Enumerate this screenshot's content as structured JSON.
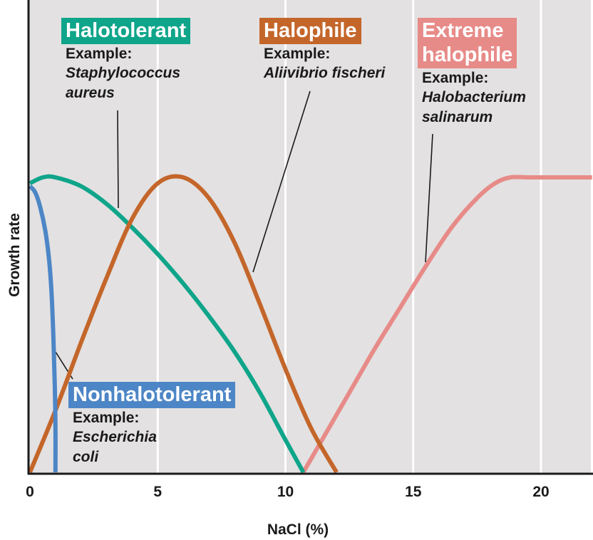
{
  "chart_data": {
    "type": "line",
    "title": "",
    "xlabel": "NaCl (%)",
    "ylabel": "Growth rate",
    "xlim": [
      0,
      22
    ],
    "ylim": [
      0,
      1
    ],
    "xticks": [
      0,
      5,
      10,
      15,
      20
    ],
    "xtick_labels": [
      "0",
      "5",
      "10",
      "15",
      "20"
    ],
    "grid": "vertical",
    "colors": {
      "background": "#e3e1e2",
      "gridline": "#ffffff",
      "axis": "#1a1a1a"
    },
    "series": [
      {
        "name": "Nonhalotolerant",
        "color": "#4d86c6",
        "x": [
          0,
          0.2,
          0.4,
          0.6,
          0.75,
          0.85,
          0.92,
          0.97,
          1.0,
          1.0
        ],
        "y": [
          0.97,
          0.95,
          0.9,
          0.82,
          0.72,
          0.6,
          0.45,
          0.3,
          0.15,
          0
        ]
      },
      {
        "name": "Halotolerant",
        "color": "#0fa58a",
        "x": [
          0,
          0.5,
          1,
          2,
          3,
          4,
          5,
          6,
          7,
          8,
          9,
          10,
          10.7
        ],
        "y": [
          0.98,
          1.0,
          1.0,
          0.97,
          0.91,
          0.83,
          0.74,
          0.64,
          0.53,
          0.41,
          0.27,
          0.11,
          0
        ]
      },
      {
        "name": "Halophile",
        "color": "#c4662a",
        "x": [
          0,
          1,
          2,
          3,
          4,
          5,
          6,
          7,
          8,
          9,
          10,
          11,
          12
        ],
        "y": [
          0,
          0.21,
          0.44,
          0.66,
          0.86,
          0.98,
          1.0,
          0.93,
          0.78,
          0.57,
          0.35,
          0.15,
          0
        ]
      },
      {
        "name": "Extreme halophile",
        "color": "#e78b88",
        "x": [
          10.7,
          11.5,
          12.5,
          13.5,
          14.5,
          15.5,
          16.5,
          17.5,
          18.2,
          18.8,
          19.5,
          20.5,
          22
        ],
        "y": [
          0,
          0.12,
          0.27,
          0.42,
          0.56,
          0.7,
          0.83,
          0.93,
          0.98,
          1.0,
          1.0,
          1.0,
          1.0
        ]
      }
    ]
  },
  "annotations": [
    {
      "title": "Halotolerant",
      "example": "Example:",
      "species": "Staphylococcus\naureus"
    },
    {
      "title": "Halophile",
      "example": "Example:",
      "species": "Aliivibrio fischeri"
    },
    {
      "title": "Extreme\nhalophile",
      "example": "Example:",
      "species": "Halobacterium\nsalinarum"
    },
    {
      "title": "Nonhalotolerant",
      "example": "Example:",
      "species": "Escherichia\ncoli"
    }
  ]
}
